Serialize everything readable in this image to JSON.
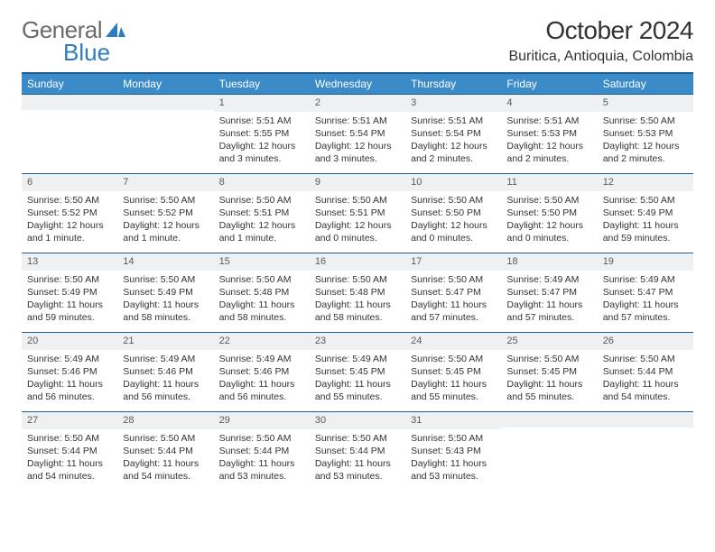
{
  "logo": {
    "word1": "General",
    "word2": "Blue"
  },
  "title": "October 2024",
  "location": "Buritica, Antioquia, Colombia",
  "colors": {
    "header_bg": "#3b8bc9",
    "header_border": "#1d5f93",
    "daynum_bg": "#eef0f1",
    "text": "#333333",
    "logo_gray": "#6b6b6b",
    "logo_blue": "#2f7bbf"
  },
  "fonts": {
    "title_pt": 28,
    "location_pt": 16,
    "header_pt": 12,
    "body_pt": 10.5
  },
  "weekdays": [
    "Sunday",
    "Monday",
    "Tuesday",
    "Wednesday",
    "Thursday",
    "Friday",
    "Saturday"
  ],
  "grid": [
    [
      null,
      null,
      {
        "n": "1",
        "sunrise": "5:51 AM",
        "sunset": "5:55 PM",
        "daylight": "12 hours and 3 minutes."
      },
      {
        "n": "2",
        "sunrise": "5:51 AM",
        "sunset": "5:54 PM",
        "daylight": "12 hours and 3 minutes."
      },
      {
        "n": "3",
        "sunrise": "5:51 AM",
        "sunset": "5:54 PM",
        "daylight": "12 hours and 2 minutes."
      },
      {
        "n": "4",
        "sunrise": "5:51 AM",
        "sunset": "5:53 PM",
        "daylight": "12 hours and 2 minutes."
      },
      {
        "n": "5",
        "sunrise": "5:50 AM",
        "sunset": "5:53 PM",
        "daylight": "12 hours and 2 minutes."
      }
    ],
    [
      {
        "n": "6",
        "sunrise": "5:50 AM",
        "sunset": "5:52 PM",
        "daylight": "12 hours and 1 minute."
      },
      {
        "n": "7",
        "sunrise": "5:50 AM",
        "sunset": "5:52 PM",
        "daylight": "12 hours and 1 minute."
      },
      {
        "n": "8",
        "sunrise": "5:50 AM",
        "sunset": "5:51 PM",
        "daylight": "12 hours and 1 minute."
      },
      {
        "n": "9",
        "sunrise": "5:50 AM",
        "sunset": "5:51 PM",
        "daylight": "12 hours and 0 minutes."
      },
      {
        "n": "10",
        "sunrise": "5:50 AM",
        "sunset": "5:50 PM",
        "daylight": "12 hours and 0 minutes."
      },
      {
        "n": "11",
        "sunrise": "5:50 AM",
        "sunset": "5:50 PM",
        "daylight": "12 hours and 0 minutes."
      },
      {
        "n": "12",
        "sunrise": "5:50 AM",
        "sunset": "5:49 PM",
        "daylight": "11 hours and 59 minutes."
      }
    ],
    [
      {
        "n": "13",
        "sunrise": "5:50 AM",
        "sunset": "5:49 PM",
        "daylight": "11 hours and 59 minutes."
      },
      {
        "n": "14",
        "sunrise": "5:50 AM",
        "sunset": "5:49 PM",
        "daylight": "11 hours and 58 minutes."
      },
      {
        "n": "15",
        "sunrise": "5:50 AM",
        "sunset": "5:48 PM",
        "daylight": "11 hours and 58 minutes."
      },
      {
        "n": "16",
        "sunrise": "5:50 AM",
        "sunset": "5:48 PM",
        "daylight": "11 hours and 58 minutes."
      },
      {
        "n": "17",
        "sunrise": "5:50 AM",
        "sunset": "5:47 PM",
        "daylight": "11 hours and 57 minutes."
      },
      {
        "n": "18",
        "sunrise": "5:49 AM",
        "sunset": "5:47 PM",
        "daylight": "11 hours and 57 minutes."
      },
      {
        "n": "19",
        "sunrise": "5:49 AM",
        "sunset": "5:47 PM",
        "daylight": "11 hours and 57 minutes."
      }
    ],
    [
      {
        "n": "20",
        "sunrise": "5:49 AM",
        "sunset": "5:46 PM",
        "daylight": "11 hours and 56 minutes."
      },
      {
        "n": "21",
        "sunrise": "5:49 AM",
        "sunset": "5:46 PM",
        "daylight": "11 hours and 56 minutes."
      },
      {
        "n": "22",
        "sunrise": "5:49 AM",
        "sunset": "5:46 PM",
        "daylight": "11 hours and 56 minutes."
      },
      {
        "n": "23",
        "sunrise": "5:49 AM",
        "sunset": "5:45 PM",
        "daylight": "11 hours and 55 minutes."
      },
      {
        "n": "24",
        "sunrise": "5:50 AM",
        "sunset": "5:45 PM",
        "daylight": "11 hours and 55 minutes."
      },
      {
        "n": "25",
        "sunrise": "5:50 AM",
        "sunset": "5:45 PM",
        "daylight": "11 hours and 55 minutes."
      },
      {
        "n": "26",
        "sunrise": "5:50 AM",
        "sunset": "5:44 PM",
        "daylight": "11 hours and 54 minutes."
      }
    ],
    [
      {
        "n": "27",
        "sunrise": "5:50 AM",
        "sunset": "5:44 PM",
        "daylight": "11 hours and 54 minutes."
      },
      {
        "n": "28",
        "sunrise": "5:50 AM",
        "sunset": "5:44 PM",
        "daylight": "11 hours and 54 minutes."
      },
      {
        "n": "29",
        "sunrise": "5:50 AM",
        "sunset": "5:44 PM",
        "daylight": "11 hours and 53 minutes."
      },
      {
        "n": "30",
        "sunrise": "5:50 AM",
        "sunset": "5:44 PM",
        "daylight": "11 hours and 53 minutes."
      },
      {
        "n": "31",
        "sunrise": "5:50 AM",
        "sunset": "5:43 PM",
        "daylight": "11 hours and 53 minutes."
      },
      null,
      null
    ]
  ],
  "labels": {
    "sunrise": "Sunrise:",
    "sunset": "Sunset:",
    "daylight": "Daylight:"
  }
}
